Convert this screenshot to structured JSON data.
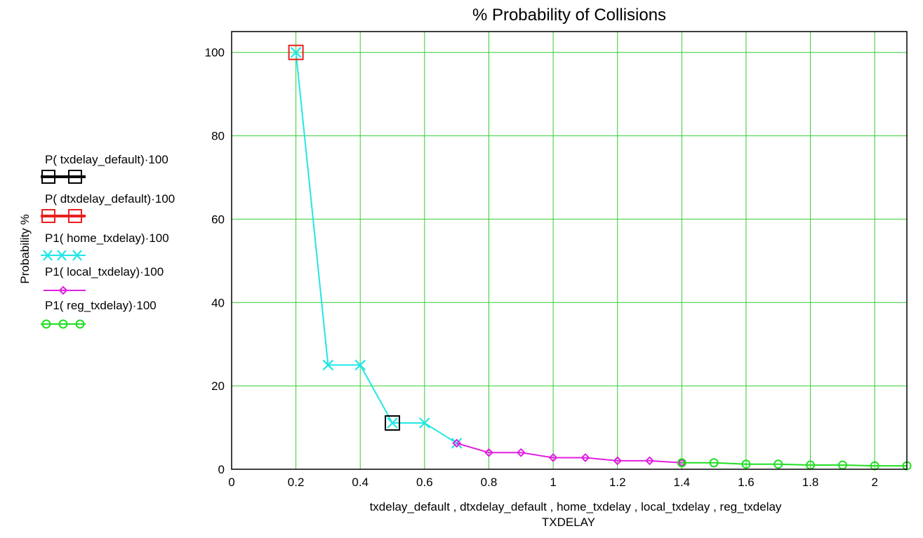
{
  "chart_data": {
    "type": "line",
    "title": "% Probability of Collisions",
    "ylabel": "Probability %",
    "xlabel_line1": "txdelay_default , dtxdelay_default , home_txdelay , local_txdelay , reg_txdelay",
    "xlabel_line2": "TXDELAY",
    "xlim": [
      0,
      2.1
    ],
    "ylim": [
      0,
      105
    ],
    "xticks": [
      "0",
      "0.2",
      "0.4",
      "0.6",
      "0.8",
      "1",
      "1.2",
      "1.4",
      "1.6",
      "1.8",
      "2"
    ],
    "yticks": [
      "0",
      "20",
      "40",
      "60",
      "80",
      "100"
    ],
    "xtick_values": [
      0,
      0.2,
      0.4,
      0.6,
      0.8,
      1.0,
      1.2,
      1.4,
      1.6,
      1.8,
      2.0
    ],
    "ytick_values": [
      0,
      20,
      40,
      60,
      80,
      100
    ],
    "grid": true,
    "grid_color": "#33cc33",
    "legend_position": "left",
    "series": [
      {
        "name": "P( txdelay_default)·100",
        "color": "#000000",
        "marker": "square",
        "x": [
          0.5
        ],
        "y": [
          11.1
        ]
      },
      {
        "name": "P( dtxdelay_default)·100",
        "color": "#e8201e",
        "marker": "square",
        "x": [
          0.2
        ],
        "y": [
          100
        ]
      },
      {
        "name": "P1( home_txdelay)·100",
        "color": "#22e6e6",
        "marker": "x",
        "x": [
          0.2,
          0.3,
          0.4,
          0.5,
          0.6,
          0.7
        ],
        "y": [
          100,
          25,
          25,
          11.1,
          11.1,
          6.25
        ]
      },
      {
        "name": "P1( local_txdelay)·100",
        "color": "#e020e0",
        "marker": "diamond",
        "x": [
          0.7,
          0.8,
          0.9,
          1.0,
          1.1,
          1.2,
          1.3,
          1.4
        ],
        "y": [
          6.25,
          4.0,
          4.0,
          2.78,
          2.78,
          2.04,
          2.04,
          1.56
        ]
      },
      {
        "name": "P1( reg_txdelay)·100",
        "color": "#22dd22",
        "marker": "circle",
        "x": [
          1.4,
          1.5,
          1.6,
          1.7,
          1.8,
          1.9,
          2.0,
          2.1
        ],
        "y": [
          1.56,
          1.56,
          1.23,
          1.23,
          1.0,
          1.0,
          0.83,
          0.83
        ]
      }
    ]
  }
}
